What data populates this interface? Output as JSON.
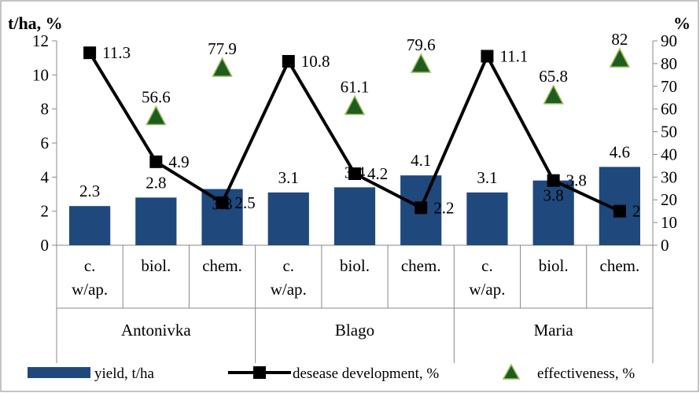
{
  "chart_data": {
    "type": "bar",
    "y_left_title": "t/ha, %",
    "y_right_title": "%",
    "ylim_left": [
      0,
      12
    ],
    "ylim_right": [
      0,
      90
    ],
    "yticks_left": [
      "0",
      "2",
      "4",
      "6",
      "8",
      "10",
      "12"
    ],
    "yticks_right": [
      "0",
      "10",
      "20",
      "30",
      "40",
      "50",
      "60",
      "70",
      "80",
      "90"
    ],
    "categories": [
      {
        "line1": "c.",
        "line2": "w/ap."
      },
      {
        "line1": "biol.",
        "line2": ""
      },
      {
        "line1": "chem.",
        "line2": ""
      },
      {
        "line1": "c.",
        "line2": "w/ap."
      },
      {
        "line1": "biol.",
        "line2": ""
      },
      {
        "line1": "chem.",
        "line2": ""
      },
      {
        "line1": "c.",
        "line2": "w/ap."
      },
      {
        "line1": "biol.",
        "line2": ""
      },
      {
        "line1": "chem.",
        "line2": ""
      }
    ],
    "groups": [
      "Antonivka",
      "Blago",
      "Maria"
    ],
    "series": [
      {
        "name": "yield, t/ha",
        "kind": "bar",
        "axis": "left",
        "color": "#1f497d",
        "values": [
          2.3,
          2.8,
          3.3,
          3.1,
          3.4,
          4.1,
          3.1,
          3.8,
          4.6
        ],
        "labels": [
          "2.3",
          "2.8",
          "3.3",
          "3.1",
          "3.4",
          "4.1",
          "3.1",
          "3.8",
          "4.6"
        ]
      },
      {
        "name": "desease development, %",
        "kind": "line",
        "axis": "left",
        "color": "#000000",
        "values": [
          11.3,
          4.9,
          2.5,
          10.8,
          4.2,
          2.2,
          11.1,
          3.8,
          2.0
        ],
        "labels": [
          "11.3",
          "4.9",
          "2.5",
          "10.8",
          "4.2",
          "2.2",
          "11.1",
          "3.8",
          "2"
        ]
      },
      {
        "name": "effectiveness, %",
        "kind": "scatter",
        "axis": "right",
        "color": "#1f5c1f",
        "values": [
          null,
          56.6,
          77.9,
          null,
          61.1,
          79.6,
          null,
          65.8,
          82.0
        ],
        "labels": [
          "",
          "56.6",
          "77.9",
          "",
          "61.1",
          "79.6",
          "",
          "65.8",
          "82"
        ]
      }
    ],
    "legend_position": "bottom",
    "grid": false
  }
}
